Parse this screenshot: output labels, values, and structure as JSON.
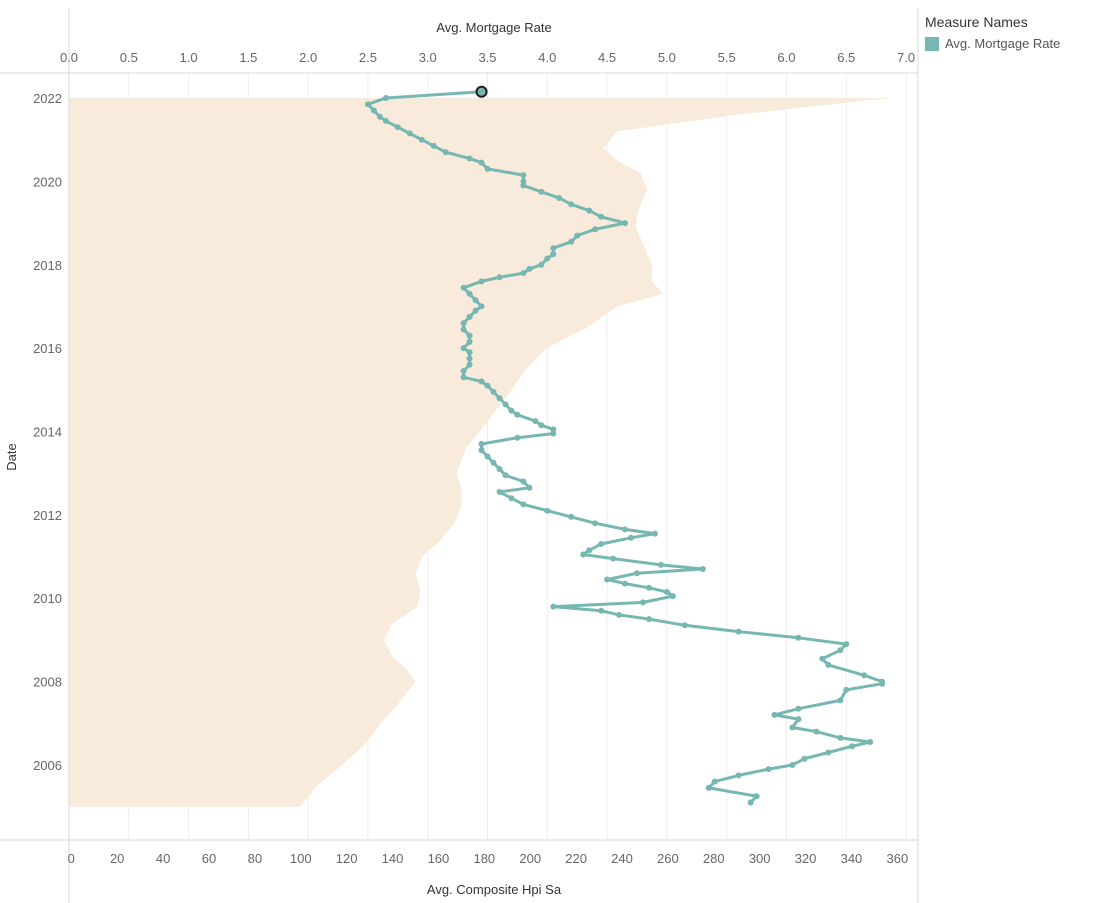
{
  "legend": {
    "title": "Measure Names",
    "item_label": "Avg. Mortgage Rate"
  },
  "colors": {
    "line": "#76b7b2",
    "area": "#f8ebdc",
    "grid": "#eeeeee",
    "axis_line": "#d8d8d8"
  },
  "chart_data": {
    "type": "line",
    "orientation": "vertical-date-axis",
    "ylabel": "Date",
    "top_axis": {
      "label": "Avg. Mortgage Rate",
      "range": [
        0,
        7.1
      ],
      "ticks": [
        "0.0",
        "0.5",
        "1.0",
        "1.5",
        "2.0",
        "2.5",
        "3.0",
        "3.5",
        "4.0",
        "4.5",
        "5.0",
        "5.5",
        "6.0",
        "6.5",
        "7.0"
      ]
    },
    "bottom_axis": {
      "label": "Avg. Composite Hpi Sa",
      "range": [
        -1,
        369
      ],
      "ticks": [
        "0",
        "20",
        "40",
        "60",
        "80",
        "100",
        "120",
        "140",
        "160",
        "180",
        "200",
        "220",
        "240",
        "260",
        "280",
        "300",
        "320",
        "340",
        "360"
      ]
    },
    "date_axis": {
      "range": [
        2004.2,
        2022.6
      ],
      "ticks": [
        "2006",
        "2008",
        "2010",
        "2012",
        "2014",
        "2016",
        "2018",
        "2020",
        "2022"
      ]
    },
    "grid": true,
    "legend_position": "top-right",
    "series": [
      {
        "name": "Avg. Composite Hpi Sa",
        "mark": "area",
        "points": [
          [
            2005.0,
            100
          ],
          [
            2005.5,
            107
          ],
          [
            2006.0,
            118
          ],
          [
            2006.5,
            128
          ],
          [
            2007.0,
            135
          ],
          [
            2007.5,
            143
          ],
          [
            2008.0,
            150
          ],
          [
            2008.3,
            146
          ],
          [
            2008.6,
            140
          ],
          [
            2009.0,
            136
          ],
          [
            2009.4,
            140
          ],
          [
            2009.8,
            151
          ],
          [
            2010.2,
            152
          ],
          [
            2010.6,
            150
          ],
          [
            2011.0,
            153
          ],
          [
            2011.4,
            161
          ],
          [
            2011.8,
            167
          ],
          [
            2012.2,
            170
          ],
          [
            2012.6,
            170
          ],
          [
            2013.0,
            168
          ],
          [
            2013.6,
            172
          ],
          [
            2014.0,
            178
          ],
          [
            2014.5,
            185
          ],
          [
            2015.0,
            192
          ],
          [
            2015.5,
            198
          ],
          [
            2016.0,
            207
          ],
          [
            2016.5,
            225
          ],
          [
            2017.0,
            238
          ],
          [
            2017.3,
            258
          ],
          [
            2017.6,
            253
          ],
          [
            2018.0,
            253
          ],
          [
            2018.4,
            250
          ],
          [
            2018.9,
            246
          ],
          [
            2019.3,
            247
          ],
          [
            2019.8,
            251
          ],
          [
            2020.2,
            248
          ],
          [
            2020.5,
            238
          ],
          [
            2020.8,
            232
          ],
          [
            2021.2,
            238
          ],
          [
            2021.6,
            290
          ],
          [
            2022.0,
            357
          ]
        ]
      },
      {
        "name": "Avg. Mortgage Rate",
        "mark": "line",
        "points": [
          [
            2005.1,
            5.7
          ],
          [
            2005.25,
            5.75
          ],
          [
            2005.45,
            5.35
          ],
          [
            2005.6,
            5.4
          ],
          [
            2005.75,
            5.6
          ],
          [
            2005.9,
            5.85
          ],
          [
            2006.0,
            6.05
          ],
          [
            2006.15,
            6.15
          ],
          [
            2006.3,
            6.35
          ],
          [
            2006.45,
            6.55
          ],
          [
            2006.55,
            6.7
          ],
          [
            2006.65,
            6.45
          ],
          [
            2006.8,
            6.25
          ],
          [
            2006.9,
            6.05
          ],
          [
            2007.1,
            6.1
          ],
          [
            2007.2,
            5.9
          ],
          [
            2007.35,
            6.1
          ],
          [
            2007.55,
            6.45
          ],
          [
            2007.8,
            6.5
          ],
          [
            2007.95,
            6.8
          ],
          [
            2008.0,
            6.8
          ],
          [
            2008.15,
            6.65
          ],
          [
            2008.4,
            6.35
          ],
          [
            2008.55,
            6.3
          ],
          [
            2008.75,
            6.45
          ],
          [
            2008.9,
            6.5
          ],
          [
            2009.05,
            6.1
          ],
          [
            2009.2,
            5.6
          ],
          [
            2009.35,
            5.15
          ],
          [
            2009.5,
            4.85
          ],
          [
            2009.6,
            4.6
          ],
          [
            2009.7,
            4.45
          ],
          [
            2009.8,
            4.05
          ],
          [
            2009.9,
            4.8
          ],
          [
            2010.05,
            5.05
          ],
          [
            2010.15,
            5.0
          ],
          [
            2010.25,
            4.85
          ],
          [
            2010.35,
            4.65
          ],
          [
            2010.45,
            4.5
          ],
          [
            2010.6,
            4.75
          ],
          [
            2010.7,
            5.3
          ],
          [
            2010.8,
            4.95
          ],
          [
            2010.95,
            4.55
          ],
          [
            2011.05,
            4.3
          ],
          [
            2011.15,
            4.35
          ],
          [
            2011.3,
            4.45
          ],
          [
            2011.45,
            4.7
          ],
          [
            2011.55,
            4.9
          ],
          [
            2011.65,
            4.65
          ],
          [
            2011.8,
            4.4
          ],
          [
            2011.95,
            4.2
          ],
          [
            2012.1,
            4.0
          ],
          [
            2012.25,
            3.8
          ],
          [
            2012.4,
            3.7
          ],
          [
            2012.55,
            3.6
          ],
          [
            2012.65,
            3.85
          ],
          [
            2012.8,
            3.8
          ],
          [
            2012.95,
            3.65
          ],
          [
            2013.1,
            3.6
          ],
          [
            2013.25,
            3.55
          ],
          [
            2013.4,
            3.5
          ],
          [
            2013.55,
            3.45
          ],
          [
            2013.7,
            3.45
          ],
          [
            2013.85,
            3.75
          ],
          [
            2013.95,
            4.05
          ],
          [
            2014.05,
            4.05
          ],
          [
            2014.15,
            3.95
          ],
          [
            2014.25,
            3.9
          ],
          [
            2014.4,
            3.75
          ],
          [
            2014.5,
            3.7
          ],
          [
            2014.65,
            3.65
          ],
          [
            2014.8,
            3.6
          ],
          [
            2014.95,
            3.55
          ],
          [
            2015.1,
            3.5
          ],
          [
            2015.2,
            3.45
          ],
          [
            2015.3,
            3.3
          ],
          [
            2015.45,
            3.3
          ],
          [
            2015.6,
            3.35
          ],
          [
            2015.75,
            3.35
          ],
          [
            2015.9,
            3.35
          ],
          [
            2016.0,
            3.3
          ],
          [
            2016.15,
            3.35
          ],
          [
            2016.3,
            3.35
          ],
          [
            2016.45,
            3.3
          ],
          [
            2016.6,
            3.3
          ],
          [
            2016.75,
            3.35
          ],
          [
            2016.9,
            3.4
          ],
          [
            2017.0,
            3.45
          ],
          [
            2017.15,
            3.4
          ],
          [
            2017.3,
            3.35
          ],
          [
            2017.45,
            3.3
          ],
          [
            2017.6,
            3.45
          ],
          [
            2017.7,
            3.6
          ],
          [
            2017.8,
            3.8
          ],
          [
            2017.9,
            3.85
          ],
          [
            2018.0,
            3.95
          ],
          [
            2018.15,
            4.0
          ],
          [
            2018.25,
            4.05
          ],
          [
            2018.4,
            4.05
          ],
          [
            2018.55,
            4.2
          ],
          [
            2018.7,
            4.25
          ],
          [
            2018.85,
            4.4
          ],
          [
            2019.0,
            4.65
          ],
          [
            2019.15,
            4.45
          ],
          [
            2019.3,
            4.35
          ],
          [
            2019.45,
            4.2
          ],
          [
            2019.6,
            4.1
          ],
          [
            2019.75,
            3.95
          ],
          [
            2019.9,
            3.8
          ],
          [
            2020.0,
            3.8
          ],
          [
            2020.15,
            3.8
          ],
          [
            2020.3,
            3.5
          ],
          [
            2020.45,
            3.45
          ],
          [
            2020.55,
            3.35
          ],
          [
            2020.7,
            3.15
          ],
          [
            2020.85,
            3.05
          ],
          [
            2021.0,
            2.95
          ],
          [
            2021.15,
            2.85
          ],
          [
            2021.3,
            2.75
          ],
          [
            2021.45,
            2.65
          ],
          [
            2021.55,
            2.6
          ],
          [
            2021.7,
            2.55
          ],
          [
            2021.85,
            2.5
          ],
          [
            2022.0,
            2.65
          ],
          [
            2022.15,
            3.45
          ]
        ]
      }
    ],
    "highlighted_point": {
      "series": "Avg. Mortgage Rate",
      "x": 2022.15,
      "y": 3.45
    }
  }
}
